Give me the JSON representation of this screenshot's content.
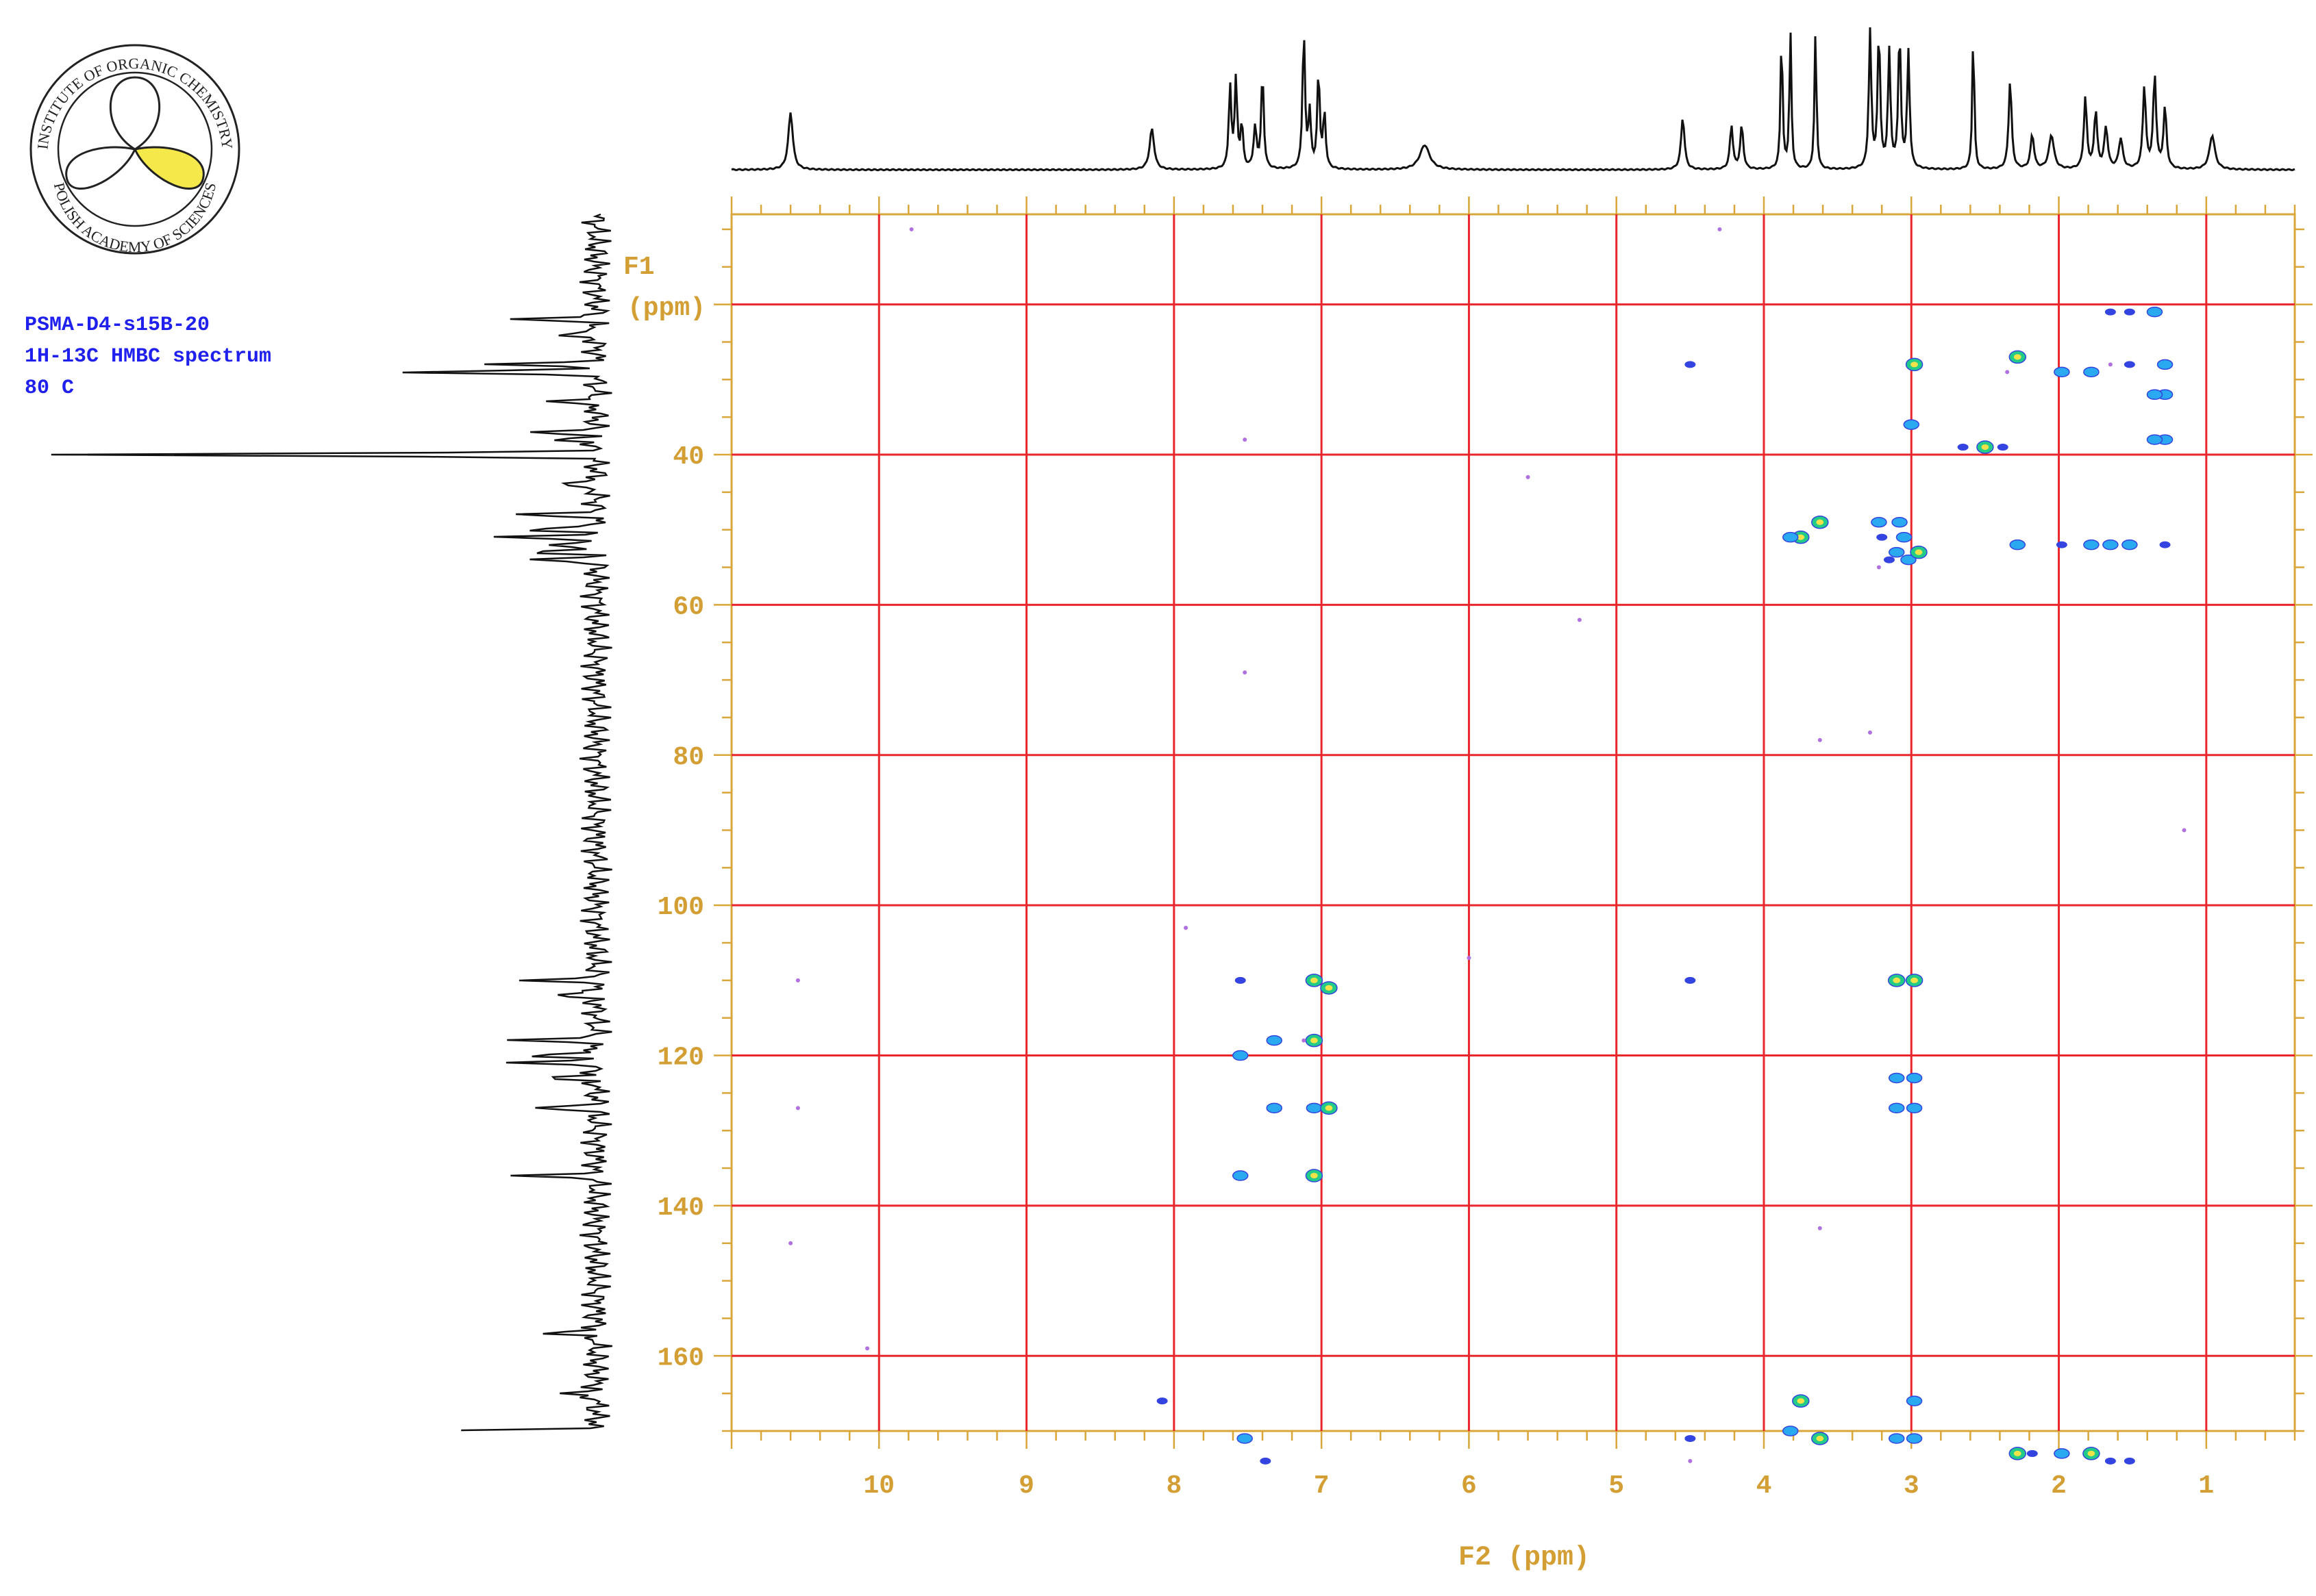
{
  "logo": {
    "top_text": "INSTITUTE OF ORGANIC CHEMISTRY",
    "bottom_text": "POLISH ACADEMY OF SCIENCES",
    "fill_color": "#f5e84a"
  },
  "info": {
    "sample": "PSMA-D4-s15B-20",
    "experiment": "1H-13C HMBC spectrum",
    "temperature": "80 C"
  },
  "chart_data": {
    "type": "scatter",
    "xlabel": "F2 (ppm)",
    "ylabel_line1": "F1",
    "ylabel_line2": "(ppm)",
    "xlim": [
      11.0,
      0.4
    ],
    "ylim": [
      170,
      8
    ],
    "x_ticks": [
      10,
      9,
      8,
      7,
      6,
      5,
      4,
      3,
      2,
      1
    ],
    "y_ticks": [
      40,
      60,
      80,
      100,
      120,
      140,
      160
    ],
    "x_grid": [
      10,
      9,
      8,
      7,
      6,
      5,
      4,
      3,
      2,
      1
    ],
    "y_grid": [
      20,
      40,
      60,
      80,
      100,
      120,
      140,
      160
    ],
    "grid": true,
    "colors": {
      "axis": "#d9a63a",
      "grid": "#e8262c",
      "label": "#d39f34",
      "peak_strong": "#22cc88",
      "peak_medium": "#2aa8f0",
      "peak_weak": "#3344e0",
      "peak_faint": "#b070e0",
      "peak_center": "#f2e24a"
    },
    "proton_projection": [
      {
        "ppm": 10.6,
        "h": 0.42,
        "w": 0.018
      },
      {
        "ppm": 8.15,
        "h": 0.3,
        "w": 0.018
      },
      {
        "ppm": 7.62,
        "h": 0.6,
        "w": 0.01
      },
      {
        "ppm": 7.58,
        "h": 0.65,
        "w": 0.01
      },
      {
        "ppm": 7.54,
        "h": 0.32,
        "w": 0.01
      },
      {
        "ppm": 7.45,
        "h": 0.3,
        "w": 0.012
      },
      {
        "ppm": 7.4,
        "h": 0.7,
        "w": 0.01
      },
      {
        "ppm": 7.12,
        "h": 1.0,
        "w": 0.01
      },
      {
        "ppm": 7.08,
        "h": 0.4,
        "w": 0.01
      },
      {
        "ppm": 7.02,
        "h": 0.7,
        "w": 0.01
      },
      {
        "ppm": 6.98,
        "h": 0.4,
        "w": 0.01
      },
      {
        "ppm": 6.3,
        "h": 0.18,
        "w": 0.04
      },
      {
        "ppm": 4.55,
        "h": 0.38,
        "w": 0.014
      },
      {
        "ppm": 4.22,
        "h": 0.32,
        "w": 0.012
      },
      {
        "ppm": 4.15,
        "h": 0.32,
        "w": 0.012
      },
      {
        "ppm": 3.88,
        "h": 1.0,
        "w": 0.008
      },
      {
        "ppm": 3.82,
        "h": 1.0,
        "w": 0.008
      },
      {
        "ppm": 3.65,
        "h": 1.0,
        "w": 0.008
      },
      {
        "ppm": 3.28,
        "h": 1.0,
        "w": 0.01
      },
      {
        "ppm": 3.22,
        "h": 1.0,
        "w": 0.01
      },
      {
        "ppm": 3.15,
        "h": 0.85,
        "w": 0.01
      },
      {
        "ppm": 3.08,
        "h": 1.0,
        "w": 0.01
      },
      {
        "ppm": 3.02,
        "h": 0.85,
        "w": 0.01
      },
      {
        "ppm": 2.58,
        "h": 1.0,
        "w": 0.008
      },
      {
        "ppm": 2.33,
        "h": 0.65,
        "w": 0.012
      },
      {
        "ppm": 2.18,
        "h": 0.25,
        "w": 0.014
      },
      {
        "ppm": 2.05,
        "h": 0.25,
        "w": 0.02
      },
      {
        "ppm": 1.82,
        "h": 0.52,
        "w": 0.012
      },
      {
        "ppm": 1.75,
        "h": 0.42,
        "w": 0.012
      },
      {
        "ppm": 1.68,
        "h": 0.3,
        "w": 0.014
      },
      {
        "ppm": 1.58,
        "h": 0.22,
        "w": 0.016
      },
      {
        "ppm": 1.42,
        "h": 0.6,
        "w": 0.012
      },
      {
        "ppm": 1.35,
        "h": 0.68,
        "w": 0.012
      },
      {
        "ppm": 1.28,
        "h": 0.45,
        "w": 0.012
      },
      {
        "ppm": 0.96,
        "h": 0.25,
        "w": 0.022
      }
    ],
    "carbon_projection": [
      {
        "ppm": 22,
        "h": 0.4
      },
      {
        "ppm": 24,
        "h": 0.25
      },
      {
        "ppm": 28,
        "h": 0.5
      },
      {
        "ppm": 29,
        "h": 1.0
      },
      {
        "ppm": 33,
        "h": 0.25
      },
      {
        "ppm": 37,
        "h": 0.3
      },
      {
        "ppm": 38,
        "h": 0.25
      },
      {
        "ppm": 40,
        "h": 2.6
      },
      {
        "ppm": 44,
        "h": 0.25
      },
      {
        "ppm": 48,
        "h": 0.35
      },
      {
        "ppm": 50,
        "h": 0.4
      },
      {
        "ppm": 51,
        "h": 0.45
      },
      {
        "ppm": 52,
        "h": 0.3
      },
      {
        "ppm": 53,
        "h": 0.35
      },
      {
        "ppm": 54,
        "h": 0.3
      },
      {
        "ppm": 110,
        "h": 0.3
      },
      {
        "ppm": 112,
        "h": 0.25
      },
      {
        "ppm": 118,
        "h": 0.4
      },
      {
        "ppm": 120,
        "h": 0.4
      },
      {
        "ppm": 121,
        "h": 0.4
      },
      {
        "ppm": 123,
        "h": 0.3
      },
      {
        "ppm": 127,
        "h": 0.3
      },
      {
        "ppm": 136,
        "h": 0.35
      },
      {
        "ppm": 157,
        "h": 0.3
      },
      {
        "ppm": 165,
        "h": 0.2
      },
      {
        "ppm": 170,
        "h": 0.7
      },
      {
        "ppm": 172,
        "h": 0.4
      },
      {
        "ppm": 173,
        "h": 0.35
      }
    ],
    "cross_peaks": [
      {
        "x": 1.35,
        "y": 21,
        "s": 2
      },
      {
        "x": 1.52,
        "y": 21,
        "s": 3
      },
      {
        "x": 1.65,
        "y": 21,
        "s": 3
      },
      {
        "x": 2.28,
        "y": 27,
        "s": 1
      },
      {
        "x": 2.35,
        "y": 29,
        "s": 4
      },
      {
        "x": 2.98,
        "y": 28,
        "s": 1
      },
      {
        "x": 3.0,
        "y": 36,
        "s": 2
      },
      {
        "x": 1.28,
        "y": 28,
        "s": 2
      },
      {
        "x": 1.52,
        "y": 28,
        "s": 3
      },
      {
        "x": 1.65,
        "y": 28,
        "s": 4
      },
      {
        "x": 1.78,
        "y": 29,
        "s": 2
      },
      {
        "x": 1.98,
        "y": 29,
        "s": 2
      },
      {
        "x": 1.28,
        "y": 32,
        "s": 2
      },
      {
        "x": 1.35,
        "y": 32,
        "s": 2
      },
      {
        "x": 1.28,
        "y": 38,
        "s": 2
      },
      {
        "x": 1.35,
        "y": 38,
        "s": 2
      },
      {
        "x": 4.5,
        "y": 28,
        "s": 3
      },
      {
        "x": 2.5,
        "y": 39,
        "s": 1
      },
      {
        "x": 2.65,
        "y": 39,
        "s": 3
      },
      {
        "x": 2.38,
        "y": 39,
        "s": 3
      },
      {
        "x": 7.52,
        "y": 38,
        "s": 4
      },
      {
        "x": 3.62,
        "y": 49,
        "s": 1
      },
      {
        "x": 3.75,
        "y": 51,
        "s": 1
      },
      {
        "x": 3.82,
        "y": 51,
        "s": 2
      },
      {
        "x": 3.22,
        "y": 49,
        "s": 2
      },
      {
        "x": 3.08,
        "y": 49,
        "s": 2
      },
      {
        "x": 3.2,
        "y": 51,
        "s": 3
      },
      {
        "x": 3.05,
        "y": 51,
        "s": 2
      },
      {
        "x": 3.1,
        "y": 53,
        "s": 2
      },
      {
        "x": 3.02,
        "y": 54,
        "s": 2
      },
      {
        "x": 2.95,
        "y": 53,
        "s": 1
      },
      {
        "x": 3.15,
        "y": 54,
        "s": 3
      },
      {
        "x": 3.22,
        "y": 55,
        "s": 4
      },
      {
        "x": 2.28,
        "y": 52,
        "s": 2
      },
      {
        "x": 1.98,
        "y": 52,
        "s": 3
      },
      {
        "x": 1.78,
        "y": 52,
        "s": 2
      },
      {
        "x": 1.65,
        "y": 52,
        "s": 2
      },
      {
        "x": 1.52,
        "y": 52,
        "s": 2
      },
      {
        "x": 1.28,
        "y": 52,
        "s": 3
      },
      {
        "x": 7.05,
        "y": 110,
        "s": 1
      },
      {
        "x": 6.95,
        "y": 111,
        "s": 1
      },
      {
        "x": 7.55,
        "y": 110,
        "s": 3
      },
      {
        "x": 4.5,
        "y": 110,
        "s": 3
      },
      {
        "x": 3.1,
        "y": 110,
        "s": 1
      },
      {
        "x": 2.98,
        "y": 110,
        "s": 1
      },
      {
        "x": 10.55,
        "y": 110,
        "s": 4
      },
      {
        "x": 7.32,
        "y": 118,
        "s": 2
      },
      {
        "x": 7.05,
        "y": 118,
        "s": 1
      },
      {
        "x": 7.12,
        "y": 118,
        "s": 4
      },
      {
        "x": 7.55,
        "y": 120,
        "s": 2
      },
      {
        "x": 3.1,
        "y": 123,
        "s": 2
      },
      {
        "x": 2.98,
        "y": 123,
        "s": 2
      },
      {
        "x": 7.32,
        "y": 127,
        "s": 2
      },
      {
        "x": 7.05,
        "y": 127,
        "s": 2
      },
      {
        "x": 6.95,
        "y": 127,
        "s": 1
      },
      {
        "x": 3.1,
        "y": 127,
        "s": 2
      },
      {
        "x": 2.98,
        "y": 127,
        "s": 2
      },
      {
        "x": 7.55,
        "y": 136,
        "s": 2
      },
      {
        "x": 7.05,
        "y": 136,
        "s": 1
      },
      {
        "x": 3.75,
        "y": 166,
        "s": 1
      },
      {
        "x": 2.98,
        "y": 166,
        "s": 2
      },
      {
        "x": 8.08,
        "y": 166,
        "s": 3
      },
      {
        "x": 3.82,
        "y": 170,
        "s": 2
      },
      {
        "x": 3.62,
        "y": 171,
        "s": 1
      },
      {
        "x": 3.1,
        "y": 171,
        "s": 2
      },
      {
        "x": 2.98,
        "y": 171,
        "s": 2
      },
      {
        "x": 4.5,
        "y": 171,
        "s": 3
      },
      {
        "x": 7.52,
        "y": 171,
        "s": 2
      },
      {
        "x": 2.28,
        "y": 173,
        "s": 1
      },
      {
        "x": 2.18,
        "y": 173,
        "s": 3
      },
      {
        "x": 1.98,
        "y": 173,
        "s": 2
      },
      {
        "x": 1.78,
        "y": 173,
        "s": 1
      },
      {
        "x": 1.65,
        "y": 174,
        "s": 3
      },
      {
        "x": 1.52,
        "y": 174,
        "s": 3
      },
      {
        "x": 7.38,
        "y": 174,
        "s": 3
      },
      {
        "x": 4.5,
        "y": 174,
        "s": 4
      },
      {
        "x": 9.78,
        "y": 10,
        "s": 4
      },
      {
        "x": 4.3,
        "y": 10,
        "s": 4
      },
      {
        "x": 5.6,
        "y": 43,
        "s": 4
      },
      {
        "x": 5.25,
        "y": 62,
        "s": 4
      },
      {
        "x": 7.52,
        "y": 69,
        "s": 4
      },
      {
        "x": 3.62,
        "y": 78,
        "s": 4
      },
      {
        "x": 3.28,
        "y": 77,
        "s": 4
      },
      {
        "x": 1.15,
        "y": 90,
        "s": 4
      },
      {
        "x": 7.92,
        "y": 103,
        "s": 4
      },
      {
        "x": 6.0,
        "y": 107,
        "s": 4
      },
      {
        "x": 10.55,
        "y": 127,
        "s": 4
      },
      {
        "x": 10.6,
        "y": 145,
        "s": 4
      },
      {
        "x": 3.62,
        "y": 143,
        "s": 4
      },
      {
        "x": 10.08,
        "y": 159,
        "s": 4
      }
    ]
  }
}
